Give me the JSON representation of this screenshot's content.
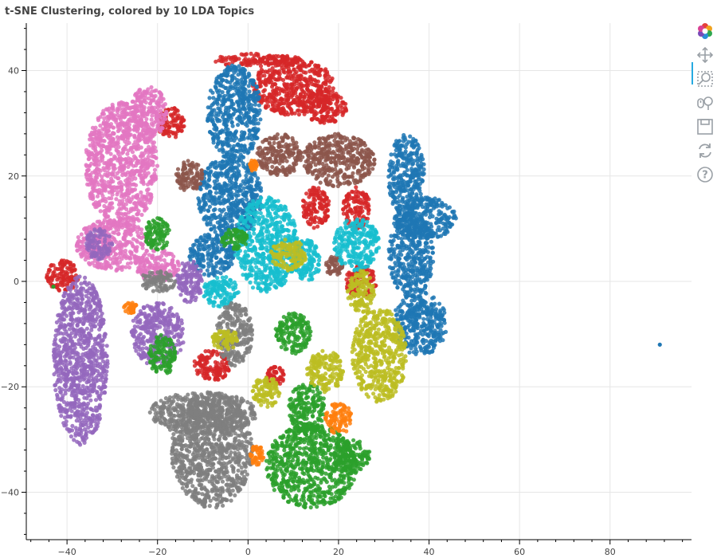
{
  "title": "t-SNE Clustering, colored by 10 LDA Topics",
  "toolbar": {
    "tools": [
      {
        "name": "bokeh-logo-icon",
        "active": false
      },
      {
        "name": "pan-icon",
        "active": true
      },
      {
        "name": "box-zoom-icon",
        "active": false
      },
      {
        "name": "wheel-zoom-icon",
        "active": false
      },
      {
        "name": "save-icon",
        "active": false
      },
      {
        "name": "reset-icon",
        "active": false
      },
      {
        "name": "help-icon",
        "active": false
      }
    ]
  },
  "chart_data": {
    "type": "scatter",
    "title": "t-SNE Clustering, colored by 10 LDA Topics",
    "xlabel": "",
    "ylabel": "",
    "xlim": [
      -49,
      98
    ],
    "ylim": [
      -49,
      49
    ],
    "xticks": [
      -40,
      -20,
      0,
      20,
      40,
      60,
      80
    ],
    "yticks": [
      40,
      20,
      0,
      -20,
      -40
    ],
    "xtick_labels": [
      "−40",
      "−20",
      "0",
      "20",
      "40",
      "60",
      "80"
    ],
    "ytick_labels": [
      "40",
      "20",
      "0",
      "−20",
      "−40"
    ],
    "grid": true,
    "legend": "none",
    "series": [
      {
        "color": "#d62728",
        "clusters": [
          {
            "cx": 10,
            "cy": 37,
            "rx": 9,
            "ry": 5.5
          },
          {
            "cx": -17,
            "cy": 30,
            "rx": 3,
            "ry": 3
          },
          {
            "cx": 2,
            "cy": 42,
            "rx": 10,
            "ry": 1.2
          },
          {
            "cx": 17,
            "cy": 33,
            "rx": 5,
            "ry": 3
          },
          {
            "cx": 15,
            "cy": 14,
            "rx": 3,
            "ry": 4
          },
          {
            "cx": 24,
            "cy": 14,
            "rx": 3,
            "ry": 4
          },
          {
            "cx": -41,
            "cy": 1,
            "rx": 3.5,
            "ry": 3
          },
          {
            "cx": -8,
            "cy": -16,
            "rx": 4,
            "ry": 3
          },
          {
            "cx": 25,
            "cy": 0,
            "rx": 3.5,
            "ry": 3
          },
          {
            "cx": 6,
            "cy": -18,
            "rx": 2,
            "ry": 2
          }
        ]
      },
      {
        "color": "#1f77b4",
        "clusters": [
          {
            "cx": -3,
            "cy": 32,
            "rx": 6,
            "ry": 9
          },
          {
            "cx": -4,
            "cy": 16,
            "rx": 7,
            "ry": 8
          },
          {
            "cx": 35,
            "cy": 20,
            "rx": 4,
            "ry": 8
          },
          {
            "cx": 36,
            "cy": 5,
            "rx": 5,
            "ry": 8
          },
          {
            "cx": 38,
            "cy": -8,
            "rx": 6,
            "ry": 6
          },
          {
            "cx": 39,
            "cy": 12,
            "rx": 7,
            "ry": 4
          },
          {
            "cx": -8,
            "cy": 5,
            "rx": 5,
            "ry": 4
          }
        ]
      },
      {
        "color": "#8c564b",
        "clusters": [
          {
            "cx": 20,
            "cy": 23,
            "rx": 8,
            "ry": 5
          },
          {
            "cx": 7,
            "cy": 24,
            "rx": 5,
            "ry": 4
          },
          {
            "cx": -13,
            "cy": 20,
            "rx": 3,
            "ry": 3
          },
          {
            "cx": 19,
            "cy": 3,
            "rx": 2,
            "ry": 2
          }
        ]
      },
      {
        "color": "#e377c2",
        "clusters": [
          {
            "cx": -28,
            "cy": 22,
            "rx": 8,
            "ry": 12
          },
          {
            "cx": -30,
            "cy": 7,
            "rx": 8,
            "ry": 5
          },
          {
            "cx": -22,
            "cy": 32,
            "rx": 4,
            "ry": 5
          },
          {
            "cx": -20,
            "cy": 3,
            "rx": 5,
            "ry": 3
          }
        ]
      },
      {
        "color": "#17becf",
        "clusters": [
          {
            "cx": 4,
            "cy": 7,
            "rx": 7,
            "ry": 9
          },
          {
            "cx": 24,
            "cy": 7,
            "rx": 5,
            "ry": 5
          },
          {
            "cx": -6,
            "cy": -2,
            "rx": 4,
            "ry": 3
          },
          {
            "cx": 13,
            "cy": 4,
            "rx": 3,
            "ry": 4
          }
        ]
      },
      {
        "color": "#9467bd",
        "clusters": [
          {
            "cx": -37,
            "cy": -15,
            "rx": 6,
            "ry": 16
          },
          {
            "cx": -20,
            "cy": -10,
            "rx": 6,
            "ry": 6
          },
          {
            "cx": -13,
            "cy": 0,
            "rx": 3,
            "ry": 4
          },
          {
            "cx": -33,
            "cy": 7,
            "rx": 3,
            "ry": 3
          }
        ]
      },
      {
        "color": "#2ca02c",
        "clusters": [
          {
            "cx": 14,
            "cy": -35,
            "rx": 10,
            "ry": 8
          },
          {
            "cx": 13,
            "cy": -24,
            "rx": 4,
            "ry": 5
          },
          {
            "cx": -19,
            "cy": -14,
            "rx": 3,
            "ry": 4
          },
          {
            "cx": -3,
            "cy": 8,
            "rx": 3,
            "ry": 2
          },
          {
            "cx": 10,
            "cy": -10,
            "rx": 4,
            "ry": 4
          },
          {
            "cx": -20,
            "cy": 9,
            "rx": 3,
            "ry": 3
          },
          {
            "cx": 23,
            "cy": -33,
            "rx": 4,
            "ry": 3
          }
        ]
      },
      {
        "color": "#7f7f7f",
        "clusters": [
          {
            "cx": -8,
            "cy": -32,
            "rx": 9,
            "ry": 11
          },
          {
            "cx": -10,
            "cy": -25,
            "rx": 12,
            "ry": 4
          },
          {
            "cx": -3,
            "cy": -10,
            "rx": 4,
            "ry": 6
          },
          {
            "cx": -20,
            "cy": 0,
            "rx": 4,
            "ry": 2
          }
        ]
      },
      {
        "color": "#bcbd22",
        "clusters": [
          {
            "cx": 29,
            "cy": -14,
            "rx": 6,
            "ry": 9
          },
          {
            "cx": 25,
            "cy": -2,
            "rx": 3,
            "ry": 4
          },
          {
            "cx": 17,
            "cy": -17,
            "rx": 4,
            "ry": 4
          },
          {
            "cx": 9,
            "cy": 5,
            "rx": 4,
            "ry": 3
          },
          {
            "cx": 4,
            "cy": -21,
            "rx": 3,
            "ry": 3
          },
          {
            "cx": -5,
            "cy": -11,
            "rx": 3,
            "ry": 2
          }
        ]
      },
      {
        "color": "#ff7f0e",
        "clusters": [
          {
            "cx": 20,
            "cy": -26,
            "rx": 3,
            "ry": 3
          },
          {
            "cx": 2,
            "cy": -33,
            "rx": 1.5,
            "ry": 2
          },
          {
            "cx": -26,
            "cy": -5,
            "rx": 1.5,
            "ry": 1
          },
          {
            "cx": 1,
            "cy": 22,
            "rx": 1,
            "ry": 1
          }
        ]
      }
    ],
    "outliers": [
      {
        "x": 91,
        "y": -12,
        "color": "#1f77b4"
      },
      {
        "x": -43,
        "y": -1,
        "color": "#2ca02c"
      }
    ]
  }
}
